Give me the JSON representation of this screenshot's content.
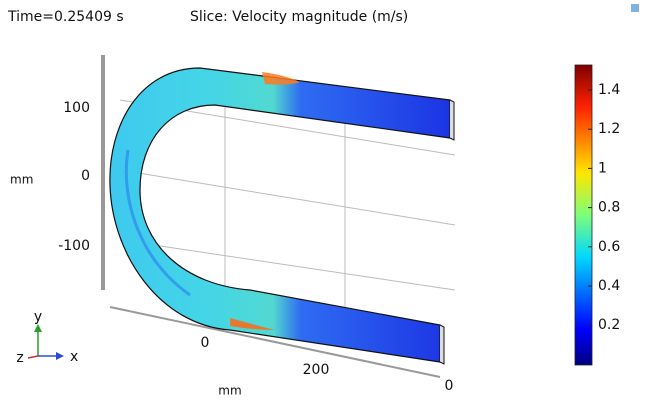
{
  "header": {
    "time": "Time=0.25409 s",
    "slice": "Slice: Velocity magnitude (m/s)"
  },
  "axes": {
    "y_ticks": [
      "100",
      "0",
      "-100"
    ],
    "y_label": "mm",
    "x_ticks": [
      "0",
      "200"
    ],
    "x_label": "mm",
    "z_tick": "0"
  },
  "triad": {
    "y": "y",
    "x": "x",
    "z": "z"
  },
  "colorbar": {
    "ticks": [
      "1.4",
      "1.2",
      "1",
      "0.8",
      "0.6",
      "0.4",
      "0.2"
    ]
  }
}
